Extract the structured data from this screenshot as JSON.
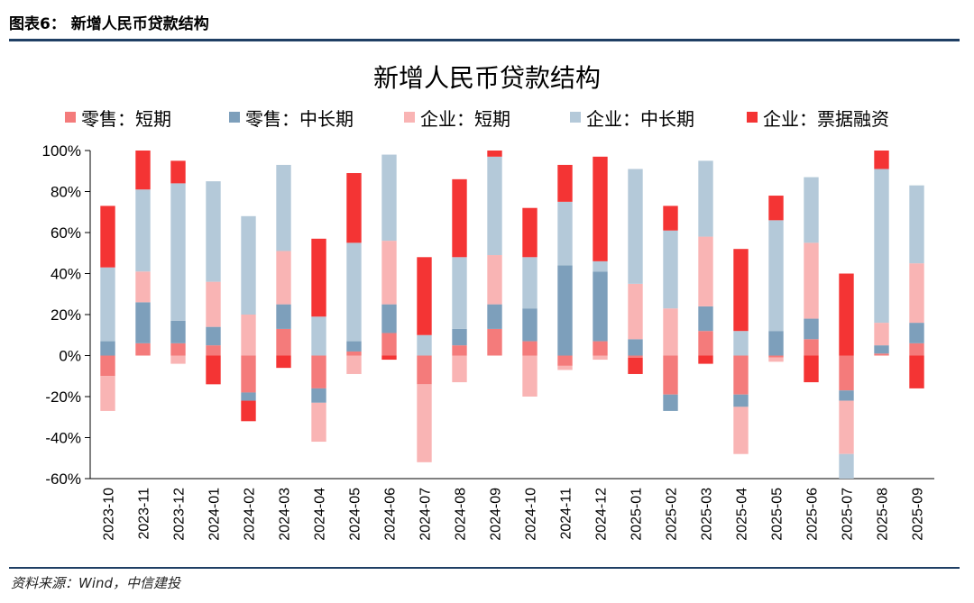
{
  "figure_label": "图表6：",
  "figure_title": "新增人民币贷款结构",
  "source": "资料来源：Wind，中信建投",
  "chart_data": {
    "type": "bar",
    "stacked": true,
    "title": "新增人民币贷款结构",
    "xlabel": "",
    "ylabel": "",
    "ylim": [
      -60,
      100
    ],
    "yticks": [
      -60,
      -40,
      -20,
      0,
      20,
      40,
      60,
      80,
      100
    ],
    "ytick_labels": [
      "-60%",
      "-40%",
      "-20%",
      "0%",
      "20%",
      "40%",
      "60%",
      "80%",
      "100%"
    ],
    "legend_position": "top",
    "categories": [
      "2023-10",
      "2023-11",
      "2023-12",
      "2024-01",
      "2024-02",
      "2024-03",
      "2024-04",
      "2024-05",
      "2024-06",
      "2024-07",
      "2024-08",
      "2024-09",
      "2024-10",
      "2024-11",
      "2024-12",
      "2025-01",
      "2025-02",
      "2025-03",
      "2025-04",
      "2025-05",
      "2025-06",
      "2025-07",
      "2025-08",
      "2025-09"
    ],
    "series": [
      {
        "name": "零售：短期",
        "color": "#f47b7b",
        "values": [
          -10,
          6,
          6,
          5,
          -18,
          13,
          -16,
          2,
          11,
          -14,
          5,
          13,
          7,
          -5,
          7,
          -1,
          -19,
          12,
          -19,
          -1,
          8,
          -17,
          1,
          6
        ]
      },
      {
        "name": "零售：中长期",
        "color": "#7d9fbb",
        "values": [
          7,
          20,
          11,
          9,
          -4,
          12,
          -7,
          5,
          14,
          0,
          8,
          12,
          16,
          44,
          34,
          8,
          -8,
          12,
          -6,
          12,
          10,
          -5,
          4,
          10
        ]
      },
      {
        "name": "企业：短期",
        "color": "#f9b4b4",
        "values": [
          -17,
          15,
          -4,
          22,
          20,
          26,
          -19,
          -9,
          31,
          -38,
          -13,
          24,
          -20,
          -2,
          -2,
          27,
          23,
          34,
          -23,
          -2,
          37,
          -26,
          11,
          29
        ]
      },
      {
        "name": "企业：中长期",
        "color": "#b4c9d9",
        "values": [
          36,
          40,
          67,
          49,
          48,
          42,
          19,
          48,
          42,
          10,
          35,
          48,
          25,
          31,
          5,
          56,
          38,
          37,
          12,
          54,
          32,
          -12,
          75,
          38
        ]
      },
      {
        "name": "企业：票据融资",
        "color": "#f43434",
        "values": [
          30,
          19,
          11,
          -14,
          -10,
          -6,
          38,
          34,
          -2,
          38,
          38,
          3,
          24,
          18,
          51,
          -8,
          12,
          -4,
          40,
          12,
          -13,
          40,
          9,
          -16
        ]
      }
    ]
  }
}
